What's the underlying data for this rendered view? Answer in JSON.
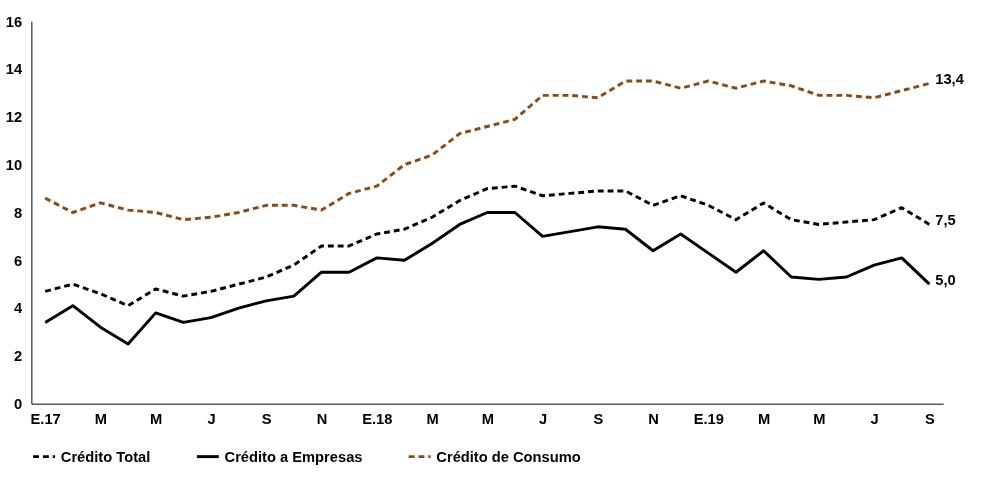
{
  "chart_data": {
    "type": "line",
    "categories": [
      "E.17",
      null,
      "M",
      null,
      "M",
      null,
      "J",
      null,
      "S",
      null,
      "N",
      null,
      "E.18",
      null,
      "M",
      null,
      "M",
      null,
      "J",
      null,
      "S",
      null,
      "N",
      null,
      "E.19",
      null,
      "M",
      null,
      "M",
      null,
      "J",
      null,
      "S"
    ],
    "series": [
      {
        "name": "Crédito Total",
        "color": "#000000",
        "line_style": "dashed",
        "values": [
          4.7,
          5.0,
          4.6,
          4.1,
          4.8,
          4.5,
          4.7,
          5.0,
          5.3,
          5.8,
          6.6,
          6.6,
          7.1,
          7.3,
          7.8,
          8.5,
          9.0,
          9.1,
          8.7,
          8.8,
          8.9,
          8.9,
          8.3,
          8.7,
          8.3,
          7.7,
          8.4,
          7.7,
          7.5,
          7.6,
          7.7,
          8.2,
          7.5
        ],
        "value_labels": [
          null,
          null,
          null,
          null,
          null,
          null,
          null,
          null,
          null,
          null,
          null,
          null,
          null,
          null,
          null,
          null,
          null,
          null,
          null,
          null,
          null,
          null,
          null,
          null,
          null,
          null,
          null,
          null,
          null,
          null,
          null,
          null,
          "7,5"
        ]
      },
      {
        "name": "Crédito a Empresas",
        "color": "#000000",
        "line_style": "solid",
        "values": [
          3.4,
          4.1,
          3.2,
          2.5,
          3.8,
          3.4,
          3.6,
          4.0,
          4.3,
          4.5,
          5.5,
          5.5,
          6.1,
          6.0,
          6.7,
          7.5,
          8.0,
          8.0,
          7.0,
          7.2,
          7.4,
          7.3,
          6.4,
          7.1,
          6.3,
          5.5,
          6.4,
          5.3,
          5.2,
          5.3,
          5.8,
          6.1,
          5.0
        ],
        "value_labels": [
          null,
          null,
          null,
          null,
          null,
          null,
          null,
          null,
          null,
          null,
          null,
          null,
          null,
          null,
          null,
          null,
          null,
          null,
          null,
          null,
          null,
          null,
          null,
          null,
          null,
          null,
          null,
          null,
          null,
          null,
          null,
          null,
          "5,0"
        ]
      },
      {
        "name": "Crédito de Consumo",
        "color": "#8c4a17",
        "line_style": "dashed",
        "values": [
          8.6,
          8.0,
          8.4,
          8.1,
          8.0,
          7.7,
          7.8,
          8.0,
          8.3,
          8.3,
          8.1,
          8.8,
          9.1,
          10.0,
          10.4,
          11.3,
          11.6,
          11.9,
          12.9,
          12.9,
          12.8,
          13.5,
          13.5,
          13.2,
          13.5,
          13.2,
          13.5,
          13.3,
          12.9,
          12.9,
          12.8,
          13.1,
          13.4
        ],
        "value_labels": [
          null,
          null,
          null,
          null,
          null,
          null,
          null,
          null,
          null,
          null,
          null,
          null,
          null,
          null,
          null,
          null,
          null,
          null,
          null,
          null,
          null,
          null,
          null,
          null,
          null,
          null,
          null,
          null,
          null,
          null,
          null,
          null,
          "13,4"
        ]
      }
    ],
    "ylim": [
      0,
      16
    ],
    "yticks": [
      0,
      2,
      4,
      6,
      8,
      10,
      12,
      14,
      16
    ],
    "grid": false,
    "legend": "bottom",
    "marker": "none"
  }
}
